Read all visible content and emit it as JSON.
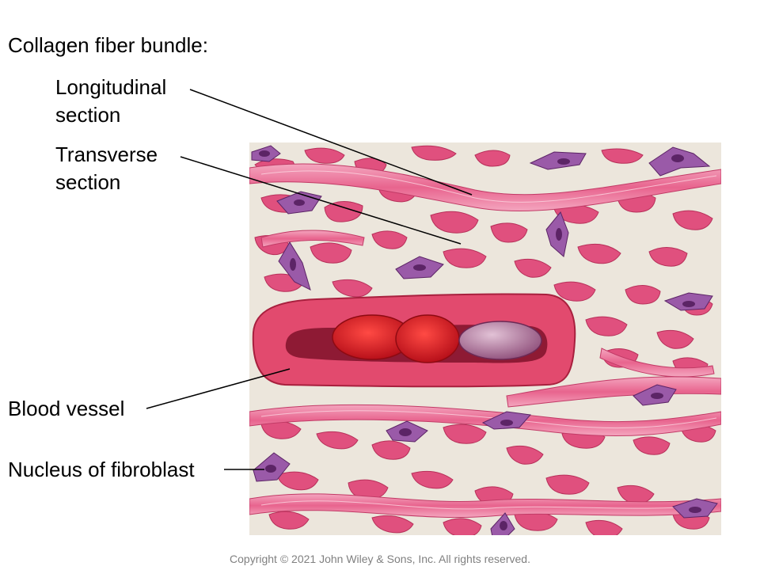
{
  "title": "Collagen fiber bundle:",
  "labels": {
    "longitudinal_line1": "Longitudinal",
    "longitudinal_line2": "section",
    "transverse_line1": "Transverse",
    "transverse_line2": "section",
    "blood_vessel": "Blood vessel",
    "nucleus": "Nucleus of fibroblast"
  },
  "copyright": "Copyright © 2021 John Wiley & Sons, Inc. All rights reserved.",
  "colors": {
    "ground_substance": "#ece6dc",
    "collagen": "#e0507e",
    "collagen_light": "#f09ab4",
    "fibroblast": "#9a5aa8",
    "fibroblast_nucleus": "#5c2466",
    "vessel_wall": "#e24a6e",
    "vessel_lumen": "#8e1a34",
    "red_blood_cell": "#dc1c24",
    "leukocyte": "#b07a9c"
  }
}
